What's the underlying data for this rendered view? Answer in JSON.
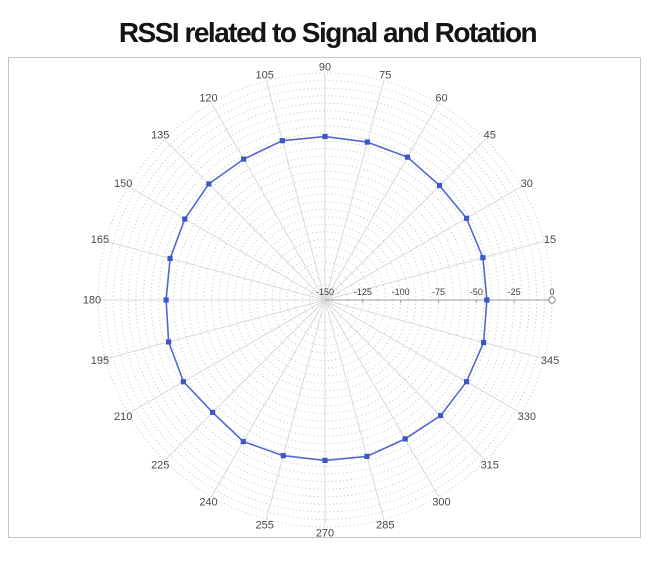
{
  "title": "RSSI related to Signal and Rotation",
  "colors": {
    "title": "#141414",
    "frame_border": "#c6c6c6",
    "background": "#ffffff",
    "grid_ring": "#cccccc",
    "grid_spoke": "#dadada",
    "radial_axis": "#9e9e9e",
    "radial_label": "#3c3c3c",
    "angular_label": "#4a4a4a",
    "series_line": "#5569cd",
    "series_marker": "#3e57c6",
    "axis_end_marker_stroke": "#8a8a8a"
  },
  "chart_data": {
    "type": "scatter",
    "subtype": "polar-line-markers",
    "title": "RSSI related to Signal and Rotation",
    "angular_unit": "degrees",
    "angular_ticks": [
      0,
      15,
      30,
      45,
      60,
      75,
      90,
      105,
      120,
      135,
      150,
      165,
      180,
      195,
      210,
      225,
      240,
      255,
      270,
      285,
      300,
      315,
      330,
      345
    ],
    "angular_tick_step": 15,
    "radial_axis": {
      "min": -150,
      "max": 0,
      "major_ticks": [
        -150,
        -125,
        -100,
        -75,
        -50,
        -25,
        0
      ],
      "minor_step": 5,
      "label_angle_deg": 0,
      "end_marker": "open-circle"
    },
    "grid": {
      "rings": "dotted",
      "spokes": "solid",
      "spoke_step_deg": 15
    },
    "legend": "none",
    "series": [
      {
        "name": "RSSI",
        "marker": "square",
        "closed_loop": true,
        "theta": [
          0,
          15,
          30,
          45,
          60,
          75,
          90,
          105,
          120,
          135,
          150,
          165,
          180,
          195,
          210,
          225,
          240,
          255,
          270,
          285,
          300,
          315,
          330,
          345
        ],
        "r": [
          -43,
          -42,
          -42,
          -43,
          -41,
          -42,
          -42,
          -41,
          -42.5,
          -41.5,
          -43,
          -44,
          -45,
          -43,
          -42,
          -45,
          -42,
          -43.5,
          -44,
          -43,
          -44,
          -42,
          -42,
          -41.5
        ]
      }
    ]
  }
}
